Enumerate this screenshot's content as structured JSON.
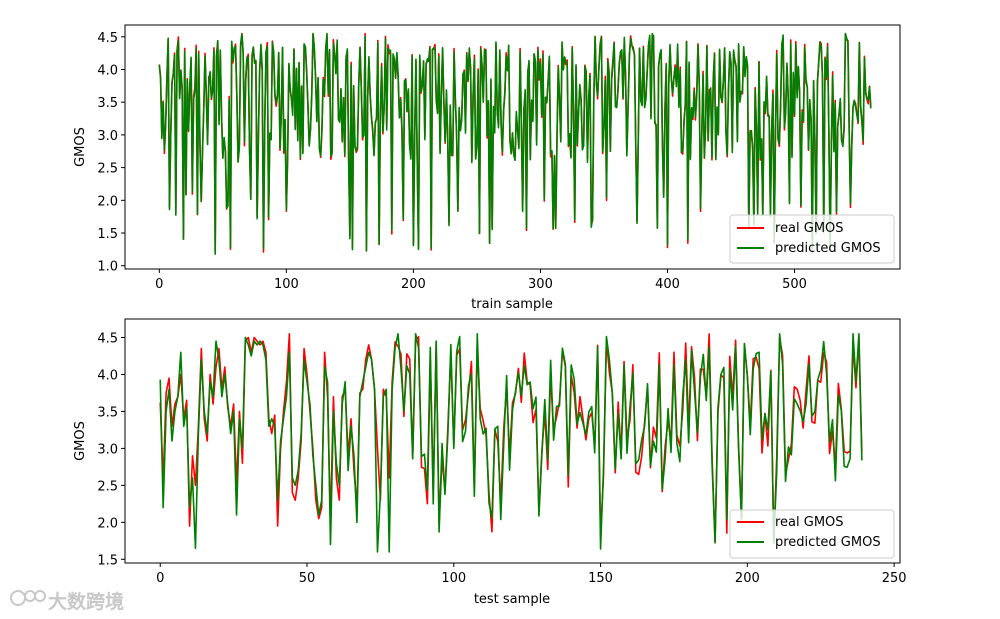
{
  "chart_data": [
    {
      "type": "line",
      "xlabel": "train sample",
      "ylabel": "GMOS",
      "xlim": [
        -27,
        583
      ],
      "ylim": [
        0.95,
        4.68
      ],
      "xticks": [
        0,
        100,
        200,
        300,
        400,
        500
      ],
      "xtick_labels": [
        "0",
        "100",
        "200",
        "300",
        "400",
        "500"
      ],
      "yticks": [
        1.0,
        1.5,
        2.0,
        2.5,
        3.0,
        3.5,
        4.0,
        4.5
      ],
      "ytick_labels": [
        "1.0",
        "1.5",
        "2.0",
        "2.5",
        "3.0",
        "3.5",
        "4.0",
        "4.5"
      ],
      "legend": [
        "real GMOS",
        "predicted GMOS"
      ],
      "legend_position": "lower right",
      "colors": [
        "#ff0000",
        "#008000"
      ],
      "n_points": 561,
      "seed": 17
    },
    {
      "type": "line",
      "xlabel": "test sample",
      "ylabel": "GMOS",
      "xlim": [
        -12,
        252
      ],
      "ylim": [
        1.45,
        4.75
      ],
      "xticks": [
        0,
        50,
        100,
        150,
        200,
        250
      ],
      "xtick_labels": [
        "0",
        "50",
        "100",
        "150",
        "200",
        "250"
      ],
      "yticks": [
        1.5,
        2.0,
        2.5,
        3.0,
        3.5,
        4.0,
        4.5
      ],
      "ytick_labels": [
        "1.5",
        "2.0",
        "2.5",
        "3.0",
        "3.5",
        "4.0",
        "4.5"
      ],
      "legend": [
        "real GMOS",
        "predicted GMOS"
      ],
      "legend_position": "lower right",
      "colors": [
        "#ff0000",
        "#008000"
      ],
      "n_points": 240,
      "seed": 91,
      "series": [
        {
          "name": "real GMOS",
          "anchors": [
            [
              0,
              3.62
            ],
            [
              1,
              2.55
            ],
            [
              2,
              3.75
            ],
            [
              3,
              3.95
            ],
            [
              4,
              3.3
            ],
            [
              5,
              3.6
            ],
            [
              6,
              3.7
            ],
            [
              7,
              4.0
            ],
            [
              8,
              3.4
            ],
            [
              9,
              3.65
            ],
            [
              10,
              1.95
            ],
            [
              11,
              2.9
            ],
            [
              12,
              2.5
            ],
            [
              13,
              3.3
            ],
            [
              14,
              4.35
            ],
            [
              15,
              3.4
            ],
            [
              16,
              3.1
            ],
            [
              17,
              4.0
            ],
            [
              18,
              3.6
            ],
            [
              19,
              4.1
            ],
            [
              20,
              4.35
            ],
            [
              21,
              3.8
            ],
            [
              22,
              4.1
            ],
            [
              23,
              3.55
            ],
            [
              24,
              3.3
            ],
            [
              25,
              3.6
            ],
            [
              26,
              2.5
            ],
            [
              27,
              3.5
            ],
            [
              28,
              2.8
            ],
            [
              29,
              4.45
            ],
            [
              30,
              4.5
            ],
            [
              31,
              4.3
            ],
            [
              32,
              4.5
            ],
            [
              33,
              4.45
            ],
            [
              34,
              4.4
            ],
            [
              35,
              4.45
            ],
            [
              36,
              4.3
            ],
            [
              37,
              3.4
            ],
            [
              38,
              3.2
            ],
            [
              39,
              3.45
            ],
            [
              40,
              1.95
            ],
            [
              41,
              3.0
            ],
            [
              42,
              3.5
            ],
            [
              43,
              3.9
            ],
            [
              44,
              4.55
            ],
            [
              45,
              2.4
            ],
            [
              46,
              2.3
            ],
            [
              47,
              2.6
            ],
            [
              48,
              3.1
            ],
            [
              49,
              4.35
            ],
            [
              50,
              4.0
            ],
            [
              51,
              3.5
            ],
            [
              52,
              3.0
            ],
            [
              53,
              2.3
            ],
            [
              54,
              2.05
            ],
            [
              55,
              2.2
            ],
            [
              56,
              4.3
            ],
            [
              57,
              3.7
            ],
            [
              58,
              2.0
            ],
            [
              59,
              3.7
            ],
            [
              60,
              2.6
            ],
            [
              61,
              2.3
            ],
            [
              62,
              3.7
            ],
            [
              63,
              3.8
            ],
            [
              64,
              2.9
            ],
            [
              65,
              3.4
            ],
            [
              66,
              2.7
            ],
            [
              67,
              2.2
            ],
            [
              68,
              3.75
            ],
            [
              69,
              3.8
            ],
            [
              70,
              4.2
            ],
            [
              71,
              4.4
            ],
            [
              72,
              4.2
            ],
            [
              73,
              3.8
            ],
            [
              74,
              3.0
            ],
            [
              75,
              2.3
            ],
            [
              76,
              3.8
            ],
            [
              77,
              3.7
            ],
            [
              78,
              2.6
            ],
            [
              79,
              3.9
            ]
          ]
        },
        {
          "name": "predicted GMOS",
          "anchors": [
            [
              0,
              3.93
            ],
            [
              1,
              2.2
            ],
            [
              2,
              3.5
            ],
            [
              3,
              3.8
            ],
            [
              4,
              3.1
            ],
            [
              5,
              3.5
            ],
            [
              6,
              3.7
            ],
            [
              7,
              4.3
            ],
            [
              8,
              3.3
            ],
            [
              9,
              3.55
            ],
            [
              10,
              2.2
            ],
            [
              11,
              2.6
            ],
            [
              12,
              1.65
            ],
            [
              13,
              3.2
            ],
            [
              14,
              4.2
            ],
            [
              15,
              3.5
            ],
            [
              16,
              3.2
            ],
            [
              17,
              3.9
            ],
            [
              18,
              3.7
            ],
            [
              19,
              4.45
            ],
            [
              20,
              4.2
            ],
            [
              21,
              3.7
            ],
            [
              22,
              4.0
            ],
            [
              23,
              3.6
            ],
            [
              24,
              3.2
            ],
            [
              25,
              3.5
            ],
            [
              26,
              2.1
            ],
            [
              27,
              3.4
            ],
            [
              28,
              3.0
            ],
            [
              29,
              4.5
            ],
            [
              30,
              4.4
            ],
            [
              31,
              4.25
            ],
            [
              32,
              4.45
            ],
            [
              33,
              4.4
            ],
            [
              34,
              4.45
            ],
            [
              35,
              4.4
            ],
            [
              36,
              4.2
            ],
            [
              37,
              3.3
            ],
            [
              38,
              3.4
            ],
            [
              39,
              3.3
            ],
            [
              40,
              2.3
            ],
            [
              41,
              3.1
            ],
            [
              42,
              3.4
            ],
            [
              43,
              3.7
            ],
            [
              44,
              4.3
            ],
            [
              45,
              2.6
            ],
            [
              46,
              2.5
            ],
            [
              47,
              2.7
            ],
            [
              48,
              3.2
            ],
            [
              49,
              4.2
            ],
            [
              50,
              3.9
            ],
            [
              51,
              3.6
            ],
            [
              52,
              2.9
            ],
            [
              53,
              2.5
            ],
            [
              54,
              2.1
            ],
            [
              55,
              2.3
            ],
            [
              56,
              4.1
            ],
            [
              57,
              3.9
            ],
            [
              58,
              1.7
            ],
            [
              59,
              3.5
            ],
            [
              60,
              2.8
            ],
            [
              61,
              2.5
            ],
            [
              62,
              3.6
            ],
            [
              63,
              3.9
            ],
            [
              64,
              2.7
            ],
            [
              65,
              3.3
            ],
            [
              66,
              2.9
            ],
            [
              67,
              2.0
            ],
            [
              68,
              3.7
            ],
            [
              69,
              3.9
            ],
            [
              70,
              4.1
            ],
            [
              71,
              4.3
            ],
            [
              72,
              4.2
            ],
            [
              73,
              3.8
            ],
            [
              74,
              1.6
            ],
            [
              75,
              2.4
            ],
            [
              76,
              3.7
            ],
            [
              77,
              3.8
            ],
            [
              78,
              1.6
            ],
            [
              79,
              3.8
            ]
          ]
        }
      ]
    }
  ],
  "watermark": "大数跨境"
}
